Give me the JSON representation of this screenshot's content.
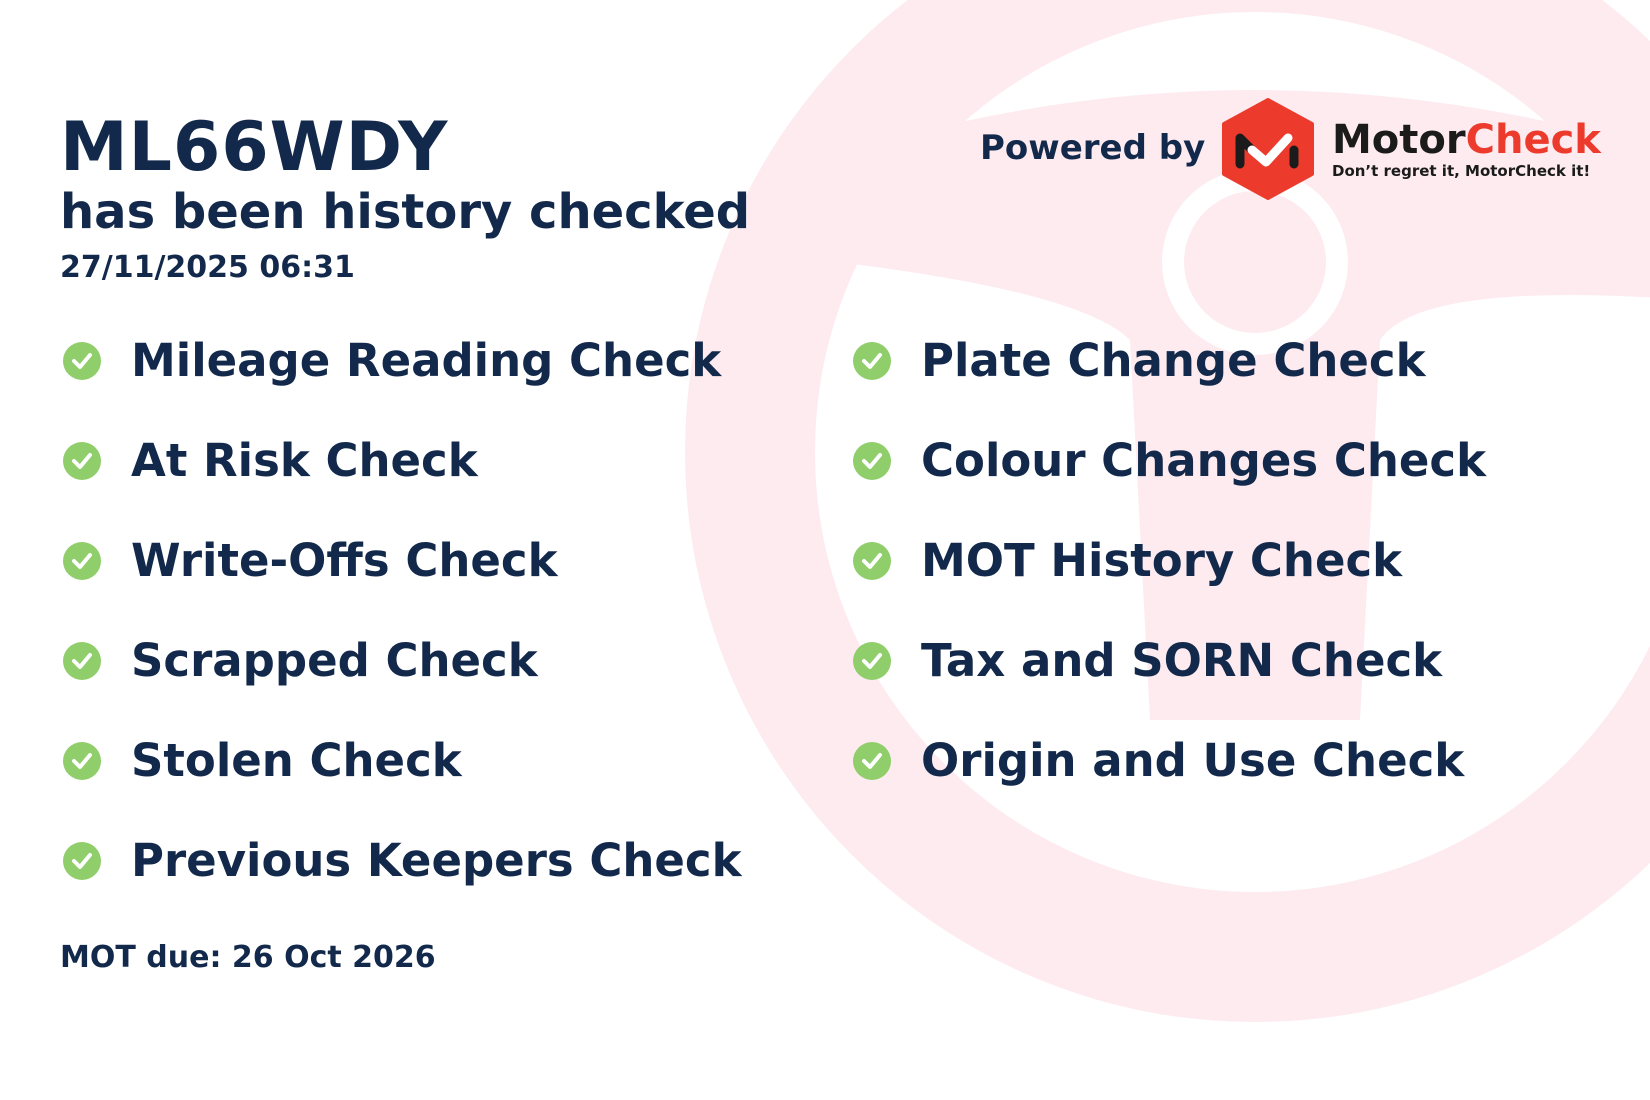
{
  "vehicle": {
    "registration": "ML66WDY",
    "status_text": "has been history checked",
    "checked_at": "27/11/2025 06:31"
  },
  "powered_by": "Powered by",
  "brand": {
    "name_part1": "Motor",
    "name_part2": "Check",
    "tagline": "Don’t regret it, MotorCheck it!",
    "accent_color": "#ec3b2c"
  },
  "checks_left": [
    "Mileage Reading Check",
    "At Risk Check",
    "Write-Offs Check",
    "Scrapped Check",
    "Stolen Check",
    "Previous Keepers Check"
  ],
  "checks_right": [
    "Plate Change Check",
    "Colour Changes Check",
    "MOT History Check",
    "Tax and SORN Check",
    "Origin and Use Check"
  ],
  "check_icon": "check-circle-icon",
  "check_color": "#8fce6a",
  "mot_due": "MOT due: 26 Oct 2026"
}
